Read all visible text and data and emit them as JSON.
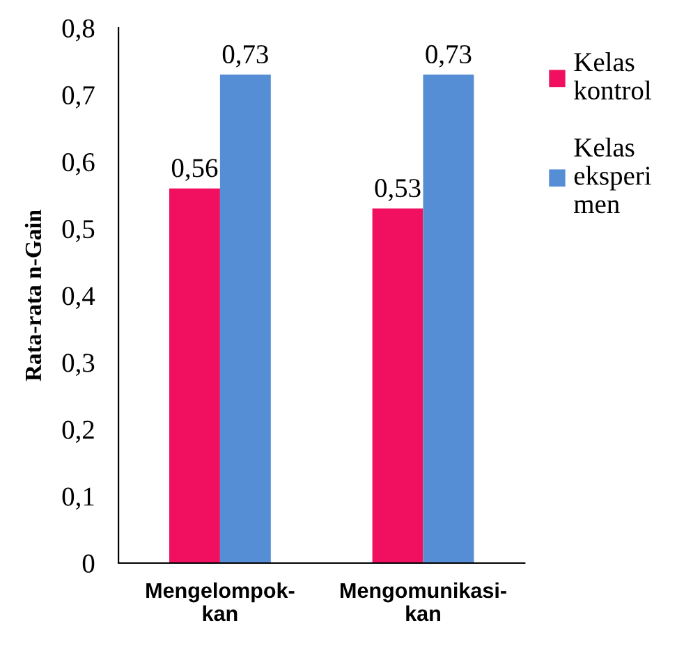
{
  "chart_data": {
    "type": "bar",
    "ylabel": "Rata-rata n-Gain",
    "categories": [
      "Mengelompok-\nkan",
      "Mengomunikasi-\nkan"
    ],
    "series": [
      {
        "name": "Kelas\nkontrol",
        "color": "#f0105f",
        "values": [
          0.56,
          0.53
        ],
        "value_labels": [
          "0,56",
          "0,53"
        ]
      },
      {
        "name": "Kelas\neksperi\nmen",
        "color": "#558ed5",
        "values": [
          0.73,
          0.73
        ],
        "value_labels": [
          "0,73",
          "0,73"
        ]
      }
    ],
    "ylim": [
      0,
      0.8
    ],
    "yticks": [
      {
        "value": 0,
        "label": "0"
      },
      {
        "value": 0.1,
        "label": "0,1"
      },
      {
        "value": 0.2,
        "label": "0,2"
      },
      {
        "value": 0.3,
        "label": "0,3"
      },
      {
        "value": 0.4,
        "label": "0,4"
      },
      {
        "value": 0.5,
        "label": "0,5"
      },
      {
        "value": 0.6,
        "label": "0,6"
      },
      {
        "value": 0.7,
        "label": "0,7"
      },
      {
        "value": 0.8,
        "label": "0,8"
      }
    ],
    "grid": false,
    "legend": "right"
  }
}
